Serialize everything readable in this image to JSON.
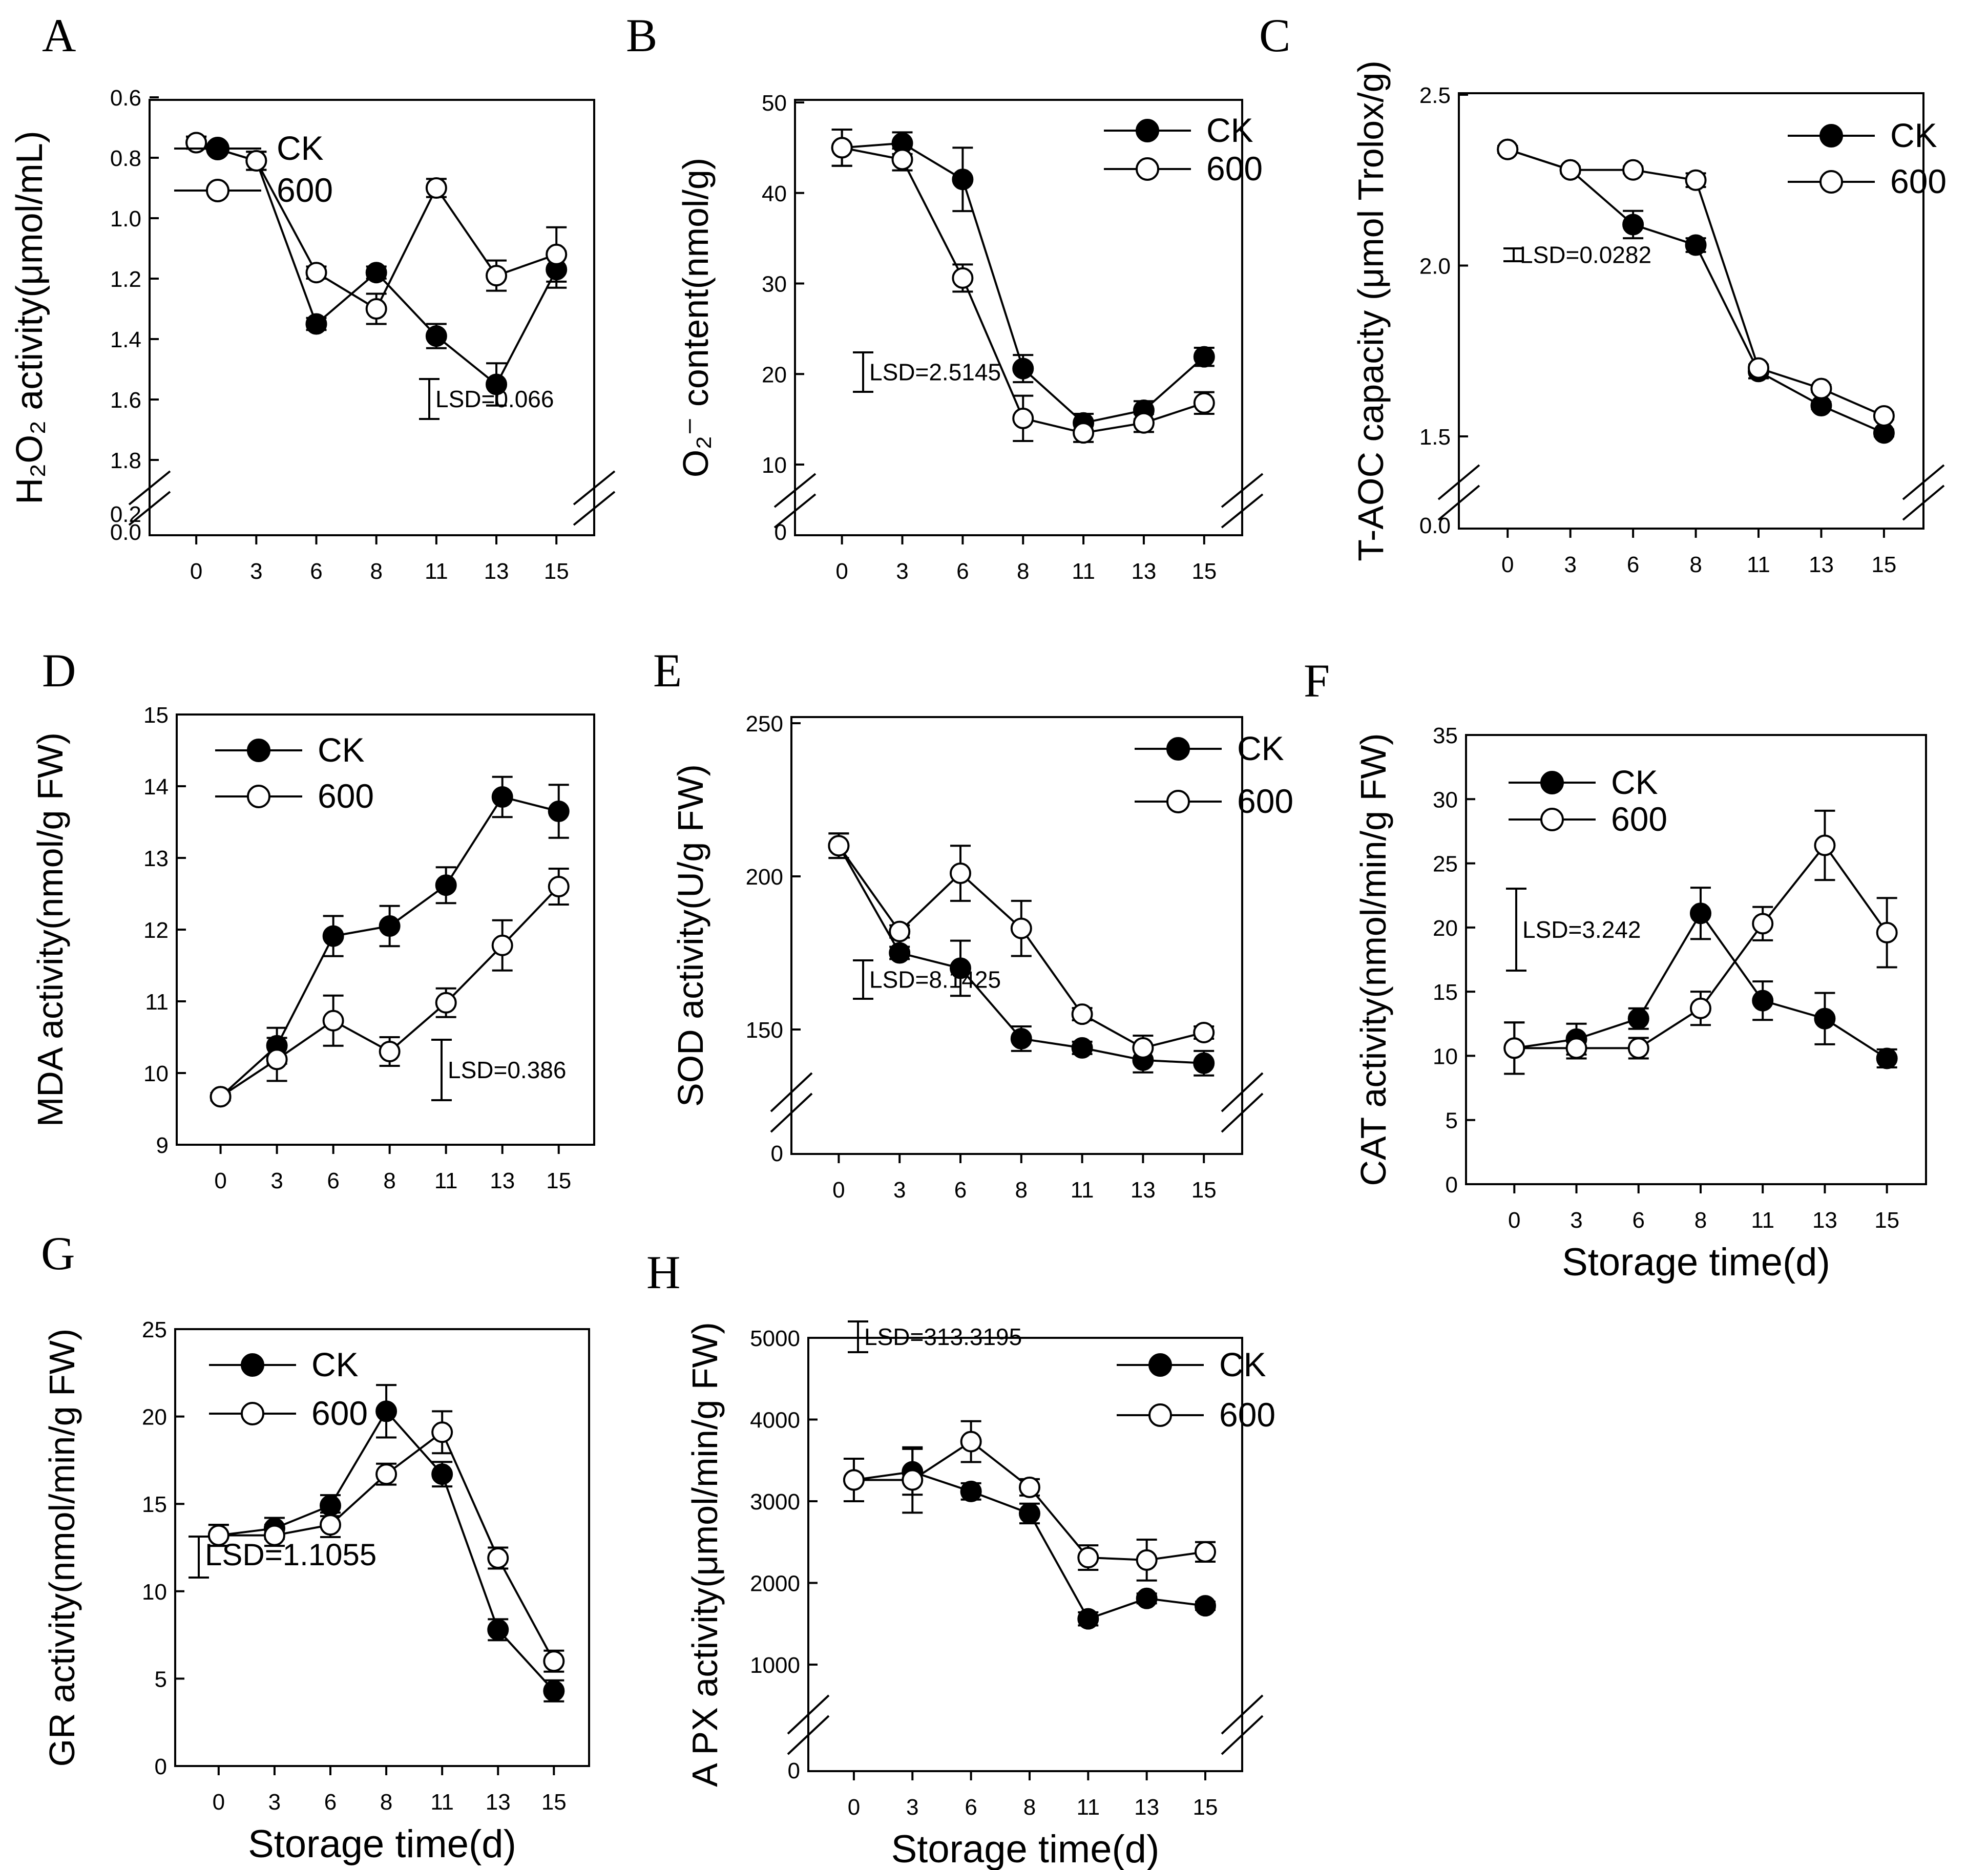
{
  "figure": {
    "legend_labels": {
      "ck": "CK",
      "t600": "600"
    },
    "xlabel": "Storage time(d)",
    "charts": [
      {
        "id": "A",
        "letter": "A",
        "ylabel": "H₂O₂ activity(μmol/mL)",
        "lsd": "LSD=0.066",
        "yticks": [
          {
            "v": 0.6,
            "label": "0.6"
          },
          {
            "v": 0.8,
            "label": "0.8"
          },
          {
            "v": 1.0,
            "label": "1.0"
          },
          {
            "v": 1.2,
            "label": "1.2"
          },
          {
            "v": 1.4,
            "label": "1.4"
          },
          {
            "v": 1.6,
            "label": "1.6"
          },
          {
            "v": 1.8,
            "label": "1.8"
          }
        ]
      },
      {
        "id": "B",
        "letter": "B",
        "ylabel": "O₂⁻ content(nmol/g)",
        "lsd": "LSD=2.5145",
        "yticks": [
          {
            "v": 10,
            "label": "10"
          },
          {
            "v": 20,
            "label": "20"
          },
          {
            "v": 30,
            "label": "30"
          },
          {
            "v": 40,
            "label": "40"
          },
          {
            "v": 50,
            "label": "50"
          }
        ]
      },
      {
        "id": "C",
        "letter": "C",
        "ylabel": "T-AOC capacity  (μmol Trolox/g)",
        "lsd": "LSD=0.0282",
        "yticks": [
          {
            "v": 1.5,
            "label": "1.5"
          },
          {
            "v": 2.0,
            "label": "2.0"
          },
          {
            "v": 2.5,
            "label": "2.5"
          }
        ]
      },
      {
        "id": "D",
        "letter": "D",
        "ylabel": "MDA activity(nmol/g FW)",
        "lsd": "LSD=0.386",
        "yticks": [
          {
            "v": 9,
            "label": "9"
          },
          {
            "v": 10,
            "label": "10"
          },
          {
            "v": 11,
            "label": "11"
          },
          {
            "v": 12,
            "label": "12"
          },
          {
            "v": 13,
            "label": "13"
          },
          {
            "v": 14,
            "label": "14"
          },
          {
            "v": 15,
            "label": "15"
          }
        ]
      },
      {
        "id": "E",
        "letter": "E",
        "ylabel": "SOD activity(U/g FW)",
        "lsd": "LSD=8.1425",
        "yticks": [
          {
            "v": 150,
            "label": "150"
          },
          {
            "v": 200,
            "label": "200"
          },
          {
            "v": 250,
            "label": "250"
          }
        ]
      },
      {
        "id": "F",
        "letter": "F",
        "ylabel": "CAT activity(nmol/min/g FW)",
        "lsd": "LSD=3.242",
        "yticks": [
          {
            "v": 0,
            "label": "0"
          },
          {
            "v": 5,
            "label": "5"
          },
          {
            "v": 10,
            "label": "10"
          },
          {
            "v": 15,
            "label": "15"
          },
          {
            "v": 20,
            "label": "20"
          },
          {
            "v": 25,
            "label": "25"
          },
          {
            "v": 30,
            "label": "30"
          },
          {
            "v": 35,
            "label": "35"
          }
        ]
      },
      {
        "id": "G",
        "letter": "G",
        "ylabel": "GR activity(nmol/min/g FW)",
        "lsd": "LSD=1.1055",
        "yticks": [
          {
            "v": 0,
            "label": "0"
          },
          {
            "v": 5,
            "label": "5"
          },
          {
            "v": 10,
            "label": "10"
          },
          {
            "v": 15,
            "label": "15"
          },
          {
            "v": 20,
            "label": "20"
          },
          {
            "v": 25,
            "label": "25"
          }
        ]
      },
      {
        "id": "H",
        "letter": "H",
        "ylabel": "A PX activity(μmol/min/g FW)",
        "lsd": "LSD=313.3195",
        "yticks": [
          {
            "v": 1000,
            "label": "1000"
          },
          {
            "v": 2000,
            "label": "2000"
          },
          {
            "v": 3000,
            "label": "3000"
          },
          {
            "v": 4000,
            "label": "4000"
          },
          {
            "v": 5000,
            "label": "5000"
          }
        ]
      }
    ]
  },
  "chart_data": [
    {
      "panel": "A",
      "type": "line",
      "ylabel": "H₂O₂ activity(μmol/mL)",
      "xlabel": "",
      "x": [
        0,
        3,
        6,
        8,
        11,
        13,
        15
      ],
      "ylim": [
        0.6,
        1.8
      ],
      "axis_break": true,
      "lower_ticks": [
        "0.2",
        "0.0"
      ],
      "lsd": 0.066,
      "series": [
        {
          "name": "CK",
          "values": [
            0.75,
            0.81,
            1.35,
            1.18,
            1.39,
            1.55,
            1.17
          ],
          "err": [
            0.02,
            0.03,
            0.02,
            0.02,
            0.04,
            0.07,
            0.06
          ]
        },
        {
          "name": "600",
          "values": [
            0.75,
            0.81,
            1.18,
            1.3,
            0.9,
            1.19,
            1.12
          ],
          "err": [
            0.02,
            0.03,
            0.02,
            0.05,
            0.03,
            0.05,
            0.09
          ]
        }
      ]
    },
    {
      "panel": "B",
      "type": "line",
      "ylabel": "O₂⁻ content(nmol/g)",
      "xlabel": "",
      "x": [
        0,
        3,
        6,
        8,
        11,
        13,
        15
      ],
      "ylim": [
        10,
        50
      ],
      "axis_break": true,
      "lower_ticks": [
        "0"
      ],
      "lsd": 2.5145,
      "series": [
        {
          "name": "CK",
          "values": [
            45.0,
            45.5,
            41.5,
            20.6,
            14.6,
            16.0,
            21.9
          ],
          "err": [
            2.0,
            1.2,
            3.5,
            1.5,
            1.0,
            1.0,
            1.0
          ]
        },
        {
          "name": "600",
          "values": [
            45.0,
            43.7,
            30.6,
            15.1,
            13.5,
            14.6,
            16.8
          ],
          "err": [
            2.0,
            1.2,
            1.5,
            2.5,
            1.0,
            1.0,
            1.2
          ]
        }
      ]
    },
    {
      "panel": "C",
      "type": "line",
      "ylabel": "T-AOC capacity  (μmol Trolox/g)",
      "xlabel": "",
      "x": [
        0,
        3,
        6,
        8,
        11,
        13,
        15
      ],
      "ylim": [
        1.5,
        2.5
      ],
      "axis_break": true,
      "lower_ticks": [
        "0.0"
      ],
      "lsd": 0.0282,
      "series": [
        {
          "name": "CK",
          "values": [
            2.34,
            2.28,
            2.12,
            2.06,
            1.69,
            1.59,
            1.51
          ],
          "err": [
            0.01,
            0.01,
            0.04,
            0.02,
            0.02,
            0.01,
            0.01
          ]
        },
        {
          "name": "600",
          "values": [
            2.34,
            2.28,
            2.28,
            2.25,
            1.7,
            1.64,
            1.56
          ],
          "err": [
            0.01,
            0.01,
            0.01,
            0.02,
            0.01,
            0.01,
            0.01
          ]
        }
      ]
    },
    {
      "panel": "D",
      "type": "line",
      "ylabel": "MDA activity(nmol/g FW)",
      "xlabel": "",
      "x": [
        0,
        3,
        6,
        8,
        11,
        13,
        15
      ],
      "ylim": [
        9,
        15
      ],
      "lsd": 0.386,
      "series": [
        {
          "name": "CK",
          "values": [
            9.67,
            10.38,
            11.91,
            12.05,
            12.62,
            13.85,
            13.65
          ],
          "err": [
            0.05,
            0.25,
            0.28,
            0.28,
            0.25,
            0.28,
            0.37
          ]
        },
        {
          "name": "600",
          "values": [
            9.67,
            10.19,
            10.73,
            10.3,
            10.98,
            11.78,
            12.6
          ],
          "err": [
            0.05,
            0.3,
            0.35,
            0.2,
            0.2,
            0.35,
            0.25
          ]
        }
      ]
    },
    {
      "panel": "E",
      "type": "line",
      "ylabel": "SOD activity(U/g FW)",
      "xlabel": "",
      "x": [
        0,
        3,
        6,
        8,
        11,
        13,
        15
      ],
      "ylim": [
        150,
        250
      ],
      "axis_break": true,
      "lower_ticks": [
        "0"
      ],
      "lsd": 8.1425,
      "series": [
        {
          "name": "CK",
          "values": [
            210,
            175,
            170,
            147,
            144,
            140,
            139
          ],
          "err": [
            4,
            2,
            9,
            4,
            2,
            4,
            4
          ]
        },
        {
          "name": "600",
          "values": [
            210,
            182,
            201,
            183,
            155,
            144,
            149
          ],
          "err": [
            4,
            2,
            9,
            9,
            2,
            4,
            2
          ]
        }
      ]
    },
    {
      "panel": "F",
      "type": "line",
      "ylabel": "CAT activity(nmol/min/g FW)",
      "xlabel": "Storage time(d)",
      "x": [
        0,
        3,
        6,
        8,
        11,
        13,
        15
      ],
      "ylim": [
        0,
        35
      ],
      "lsd": 3.242,
      "series": [
        {
          "name": "CK",
          "values": [
            10.6,
            11.3,
            12.9,
            21.1,
            14.3,
            12.9,
            9.8
          ],
          "err": [
            2.0,
            1.2,
            0.8,
            2.0,
            1.5,
            2.0,
            0.7
          ]
        },
        {
          "name": "600",
          "values": [
            10.6,
            10.6,
            10.6,
            13.7,
            20.3,
            26.4,
            19.6
          ],
          "err": [
            2.0,
            0.8,
            0.8,
            1.3,
            1.3,
            2.7,
            2.7
          ]
        }
      ]
    },
    {
      "panel": "G",
      "type": "line",
      "ylabel": "GR activity(nmol/min/g FW)",
      "xlabel": "Storage time(d)",
      "x": [
        0,
        3,
        6,
        8,
        11,
        13,
        15
      ],
      "ylim": [
        0,
        25
      ],
      "lsd": 1.1055,
      "series": [
        {
          "name": "CK",
          "values": [
            13.2,
            13.6,
            14.9,
            20.3,
            16.7,
            7.8,
            4.3
          ],
          "err": [
            0.6,
            0.6,
            0.6,
            1.5,
            0.7,
            0.6,
            0.6
          ]
        },
        {
          "name": "600",
          "values": [
            13.2,
            13.2,
            13.8,
            16.7,
            19.1,
            11.9,
            6.0
          ],
          "err": [
            0.6,
            0.6,
            0.7,
            0.6,
            1.2,
            0.6,
            0.6
          ]
        }
      ]
    },
    {
      "panel": "H",
      "type": "line",
      "ylabel": "A PX activity(μmol/min/g FW)",
      "xlabel": "Storage time(d)",
      "x": [
        0,
        3,
        6,
        8,
        11,
        13,
        15
      ],
      "ylim": [
        1000,
        5000
      ],
      "axis_break": true,
      "lower_ticks": [
        "0"
      ],
      "lsd": 313.3195,
      "series": [
        {
          "name": "CK",
          "values": [
            3260,
            3360,
            3120,
            2850,
            1560,
            1810,
            1720
          ],
          "err": [
            260,
            280,
            100,
            120,
            80,
            60,
            50
          ]
        },
        {
          "name": "600",
          "values": [
            3260,
            3260,
            3730,
            3170,
            2310,
            2280,
            2380
          ],
          "err": [
            260,
            400,
            250,
            100,
            150,
            250,
            120
          ]
        }
      ]
    }
  ]
}
